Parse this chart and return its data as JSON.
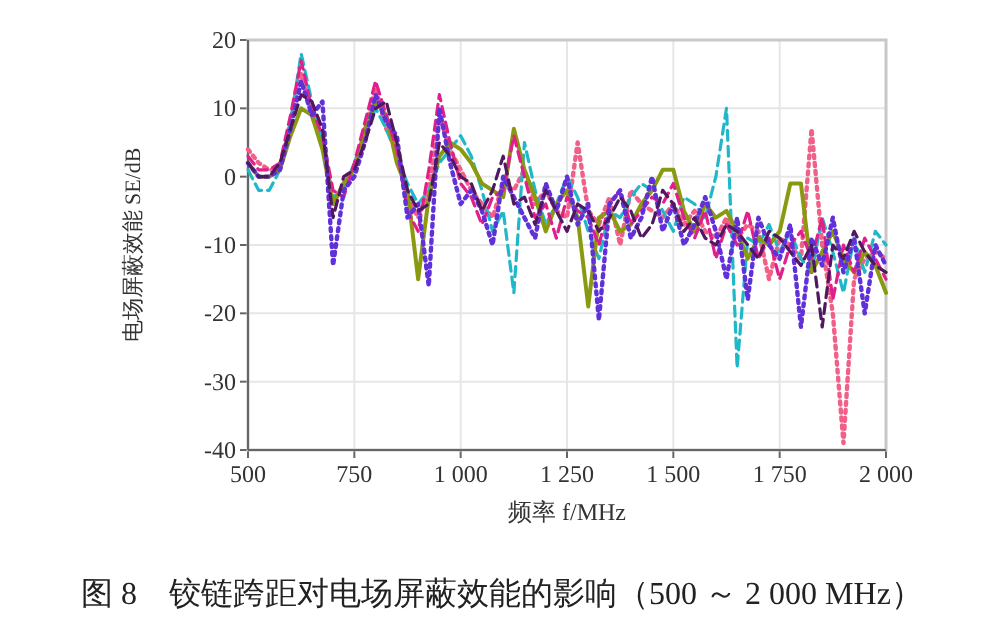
{
  "chart_data": {
    "type": "line",
    "xlabel": "频率 f/MHz",
    "ylabel": "电场屏蔽效能 SE/dB",
    "annotations": [
      "图 8　铰链跨距对电场屏蔽效能的影响（500 ～ 2 000 MHz）"
    ],
    "x": [
      500,
      525,
      550,
      575,
      600,
      625,
      650,
      675,
      700,
      725,
      750,
      775,
      800,
      825,
      850,
      875,
      900,
      925,
      950,
      975,
      1000,
      1025,
      1050,
      1075,
      1100,
      1125,
      1150,
      1175,
      1200,
      1225,
      1250,
      1275,
      1300,
      1325,
      1350,
      1375,
      1400,
      1425,
      1450,
      1475,
      1500,
      1525,
      1550,
      1575,
      1600,
      1625,
      1650,
      1675,
      1700,
      1725,
      1750,
      1775,
      1800,
      1825,
      1850,
      1875,
      1900,
      1925,
      1950,
      1975,
      2000
    ],
    "xlim": [
      500,
      2000
    ],
    "ylim": [
      -40,
      20
    ],
    "xticks": [
      500,
      750,
      {
        "value": 1000,
        "label": "1 000"
      },
      {
        "value": 1250,
        "label": "1 250"
      },
      {
        "value": 1500,
        "label": "1 500"
      },
      {
        "value": 1750,
        "label": "1 750"
      },
      {
        "value": 2000,
        "label": "2 000"
      }
    ],
    "yticks": [
      -40,
      -30,
      -20,
      -10,
      0,
      10,
      20
    ],
    "grid": true,
    "marker": "none",
    "series": [
      {
        "color": "#f06088",
        "line_style": "dotted",
        "values": [
          4,
          2,
          1,
          1,
          8,
          15,
          9,
          5,
          -4,
          -1,
          1,
          7,
          13,
          7,
          4,
          -3,
          -6,
          -2,
          9,
          4,
          1,
          -2,
          -4,
          -6,
          -1,
          -2,
          1,
          -4,
          -2,
          -5,
          -6,
          5,
          -5,
          -7,
          -3,
          -10,
          -2,
          -4,
          -5,
          -6,
          -4,
          -7,
          -5,
          -8,
          -9,
          -6,
          -9,
          -7,
          -8,
          -15,
          -9,
          -10,
          -12,
          7,
          -10,
          -20,
          -39,
          -15,
          -12,
          -11,
          -12
        ]
      },
      {
        "color": "#20b8c8",
        "line_style": "dashed",
        "values": [
          1,
          -2,
          -2,
          1,
          8,
          18,
          11,
          5,
          -3,
          -2,
          2,
          6,
          10,
          7,
          3,
          -1,
          -4,
          -2,
          2,
          4,
          6,
          3,
          -2,
          -8,
          -5,
          -17,
          5,
          -2,
          -7,
          -4,
          0,
          -3,
          -8,
          -12,
          -5,
          -6,
          -3,
          -1,
          -2,
          -5,
          -8,
          -3,
          -4,
          -6,
          0,
          10,
          -28,
          -9,
          -10,
          -7,
          -11,
          -8,
          -12,
          -14,
          -6,
          -11,
          -17,
          -9,
          -14,
          -8,
          -10
        ]
      },
      {
        "color": "#8a9a10",
        "line_style": "solid",
        "values": [
          2,
          0,
          0,
          1,
          6,
          10,
          9,
          4,
          -4,
          -1,
          1,
          7,
          11,
          9,
          2,
          -2,
          -15,
          -3,
          3,
          5,
          4,
          2,
          -1,
          -2,
          -3,
          7,
          1,
          -3,
          -8,
          -4,
          -2,
          -6,
          -19,
          -6,
          -5,
          -8,
          -7,
          -4,
          -2,
          1,
          1,
          -5,
          -8,
          -4,
          -6,
          -5,
          -8,
          -12,
          -9,
          -10,
          -8,
          -1,
          -1,
          -14,
          -11,
          -8,
          -12,
          -14,
          -11,
          -13,
          -17
        ]
      },
      {
        "color": "#e0208a",
        "line_style": "dashed",
        "values": [
          3,
          1,
          1,
          2,
          9,
          17,
          10,
          6,
          -2,
          -3,
          2,
          8,
          14,
          9,
          4,
          -5,
          -8,
          1,
          12,
          5,
          -1,
          -3,
          -7,
          -3,
          -2,
          6,
          0,
          -6,
          -4,
          -9,
          -3,
          -5,
          -6,
          -10,
          -4,
          -2,
          -7,
          -5,
          -3,
          -4,
          -1,
          -6,
          -9,
          -5,
          -12,
          -7,
          -10,
          -5,
          -12,
          -9,
          -15,
          -10,
          -8,
          -12,
          -6,
          -18,
          -10,
          -14,
          -9,
          -12,
          -15
        ]
      },
      {
        "color": "#6030d8",
        "line_style": "dotted",
        "values": [
          2,
          0,
          0,
          1,
          7,
          14,
          9,
          11,
          -13,
          -2,
          0,
          5,
          12,
          8,
          6,
          -6,
          -4,
          -16,
          10,
          2,
          -4,
          -2,
          -5,
          -10,
          0,
          -3,
          -6,
          -9,
          -1,
          -5,
          0,
          -7,
          -4,
          -21,
          -4,
          -2,
          -9,
          -6,
          0,
          -8,
          -4,
          -10,
          -7,
          -3,
          -8,
          -15,
          -6,
          -18,
          -6,
          -10,
          -12,
          -7,
          -22,
          -9,
          -13,
          -6,
          -14,
          -9,
          -20,
          -10,
          -13
        ]
      },
      {
        "color": "#501860",
        "line_style": "dashed",
        "values": [
          2,
          0,
          0,
          2,
          7,
          12,
          11,
          7,
          -6,
          0,
          1,
          5,
          10,
          11,
          5,
          -2,
          -5,
          -4,
          5,
          3,
          0,
          -1,
          -5,
          -2,
          3,
          -4,
          -3,
          -7,
          -2,
          -5,
          -8,
          -4,
          -5,
          -8,
          -6,
          -3,
          -5,
          -9,
          -7,
          -2,
          -4,
          -8,
          -6,
          -9,
          -10,
          -7,
          -8,
          -10,
          -12,
          -8,
          -9,
          -11,
          -13,
          -10,
          -22,
          -10,
          -12,
          -8,
          -11,
          -13,
          -14
        ]
      }
    ]
  }
}
